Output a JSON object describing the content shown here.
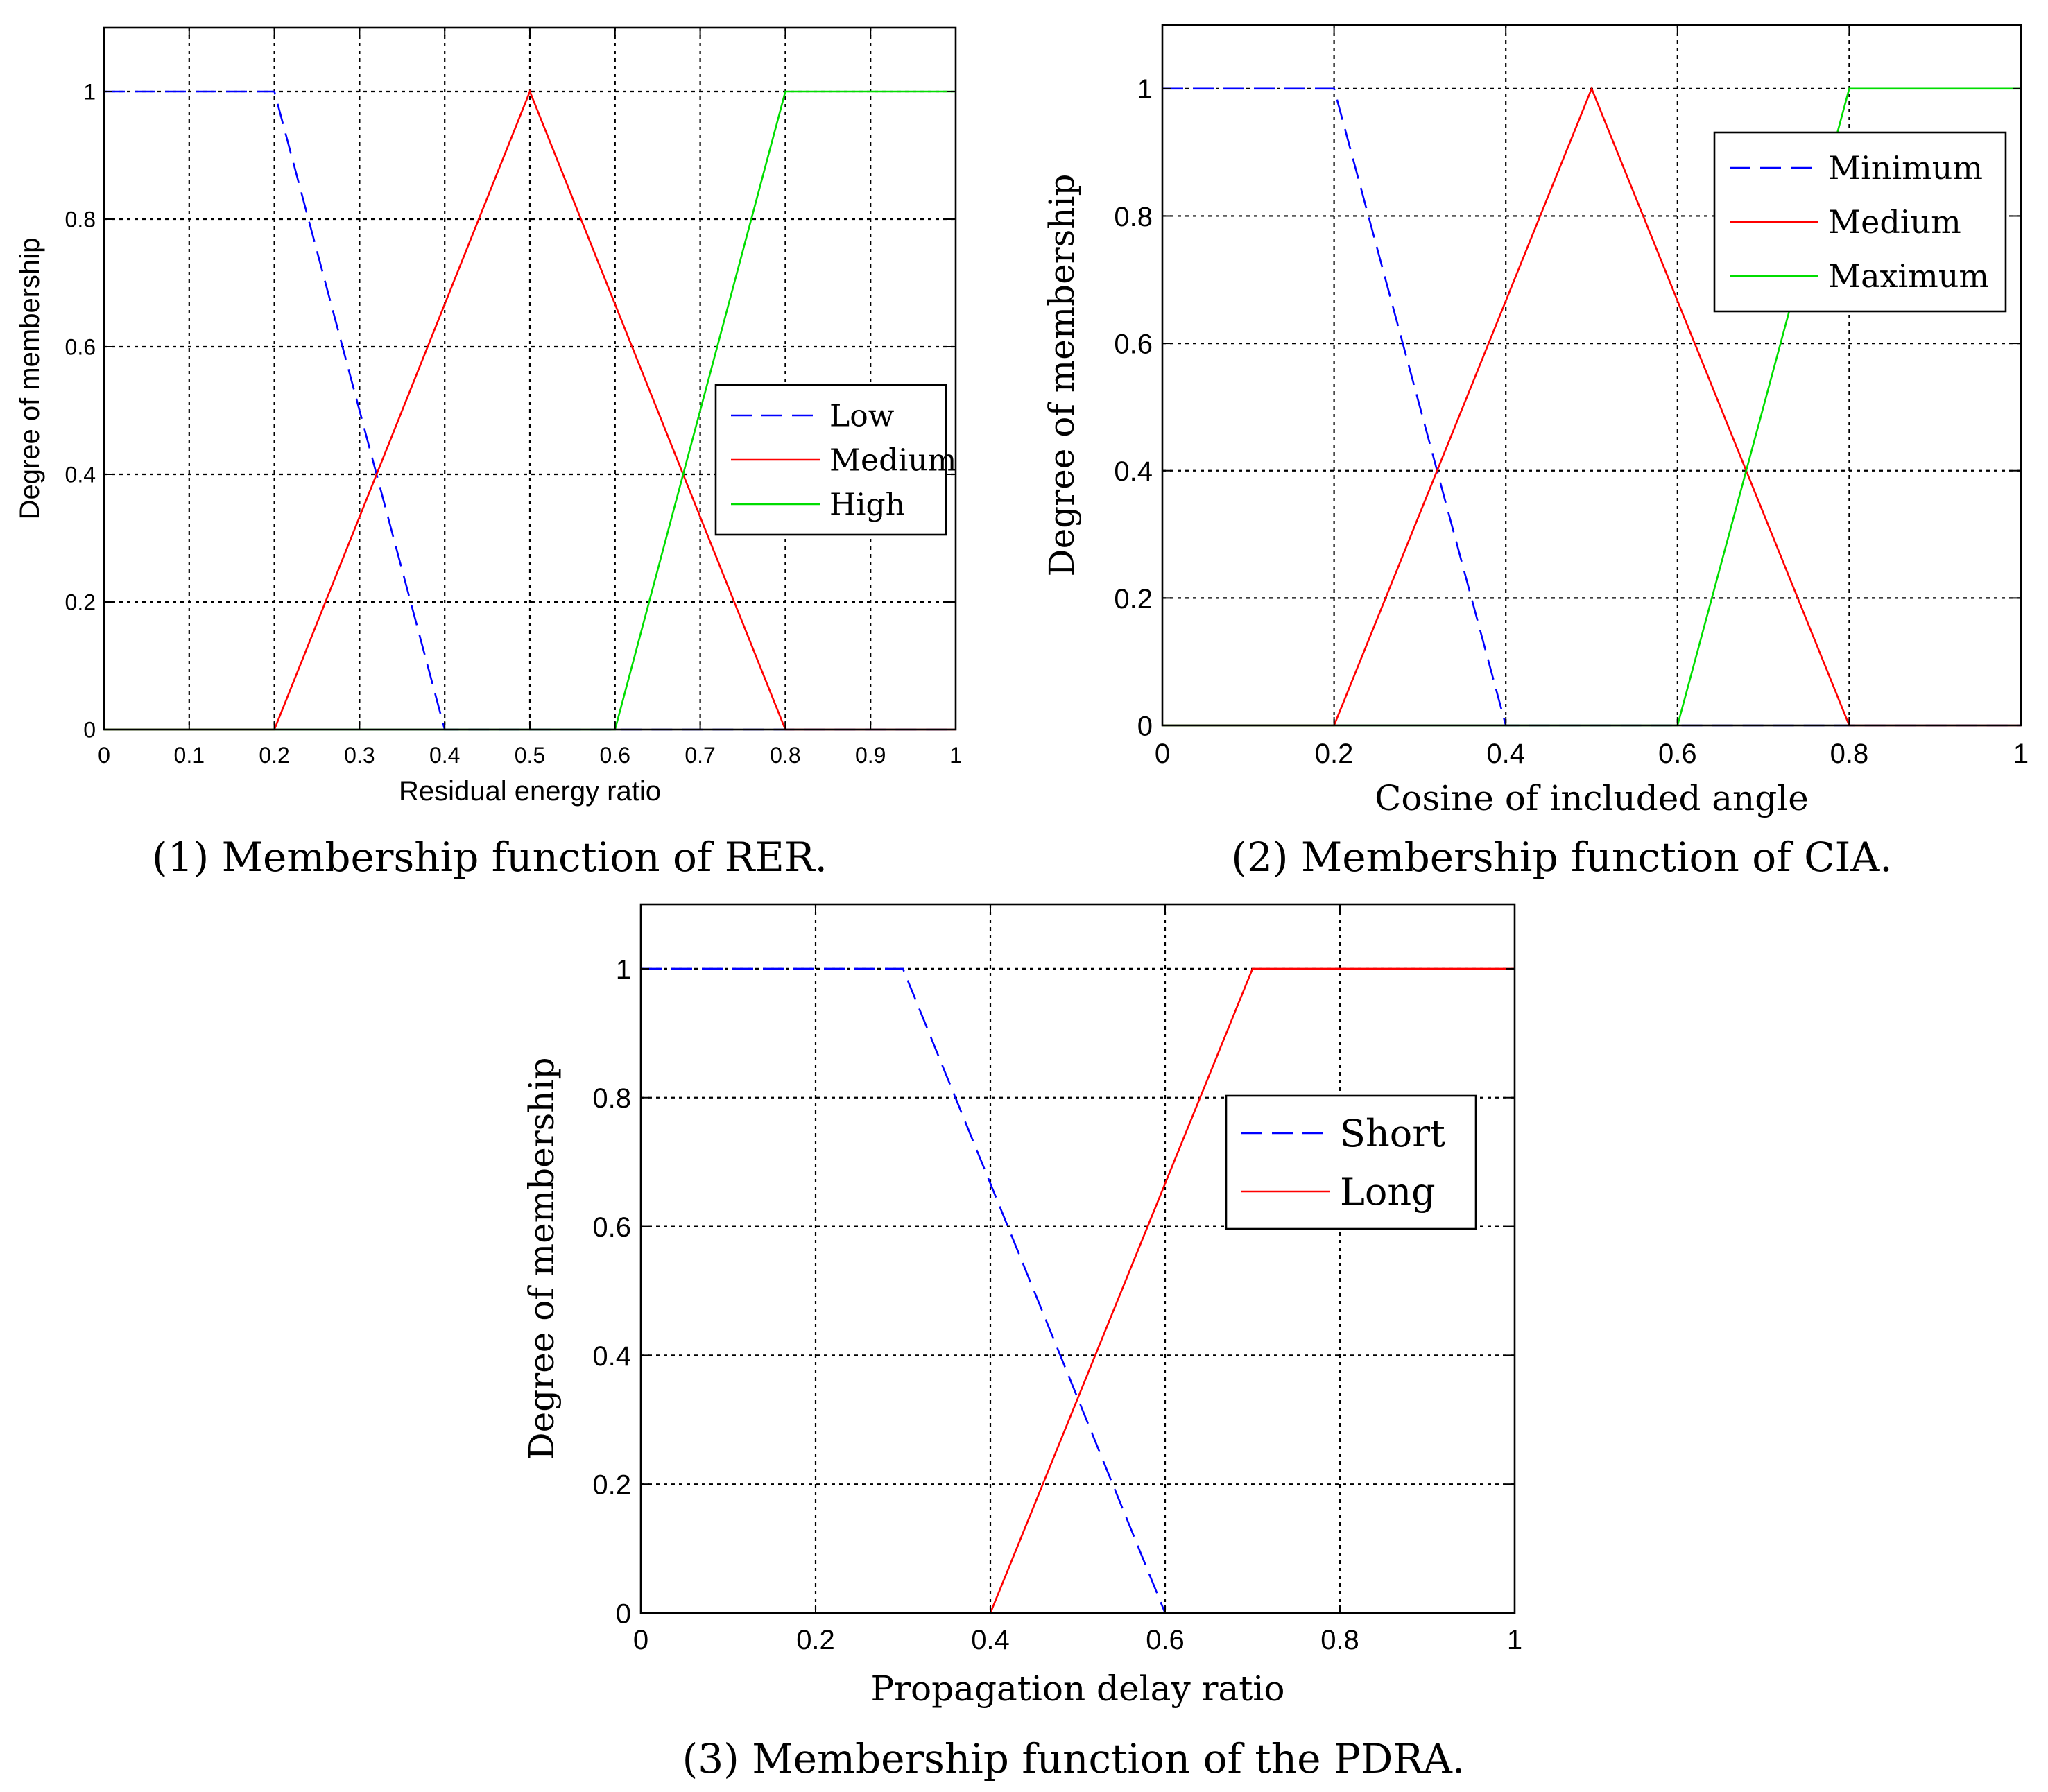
{
  "chart_data": [
    {
      "type": "line",
      "caption": "(1) Membership function of RER.",
      "xlabel": "Residual energy ratio",
      "ylabel": "Degree of membership",
      "xlim": [
        0,
        1
      ],
      "ylim": [
        0,
        1.1
      ],
      "xticks": [
        0,
        0.1,
        0.2,
        0.3,
        0.4,
        0.5,
        0.6,
        0.7,
        0.8,
        0.9,
        1
      ],
      "xtick_labels": [
        "0",
        "0.1",
        "0.2",
        "0.3",
        "0.4",
        "0.5",
        "0.6",
        "0.7",
        "0.8",
        "0.9",
        "1"
      ],
      "yticks": [
        0,
        0.2,
        0.4,
        0.6,
        0.8,
        1
      ],
      "ytick_labels": [
        "0",
        "0.2",
        "0.4",
        "0.6",
        "0.8",
        "1"
      ],
      "grid": true,
      "legend_position": "middle-right",
      "series": [
        {
          "name": "Low",
          "color": "#0000ff",
          "style": "dashed",
          "x": [
            0,
            0.2,
            0.4,
            1
          ],
          "y": [
            1,
            1,
            0,
            0
          ]
        },
        {
          "name": "Medium",
          "color": "#ff0000",
          "style": "solid",
          "x": [
            0,
            0.2,
            0.5,
            0.8,
            1
          ],
          "y": [
            0,
            0,
            1,
            0,
            0
          ]
        },
        {
          "name": "High",
          "color": "#00dd00",
          "style": "solid",
          "x": [
            0,
            0.6,
            0.8,
            1
          ],
          "y": [
            0,
            0,
            1,
            1
          ]
        }
      ]
    },
    {
      "type": "line",
      "caption": "(2) Membership function of CIA.",
      "xlabel": "Cosine of included angle",
      "ylabel": "Degree of membership",
      "xlim": [
        0,
        1
      ],
      "ylim": [
        0,
        1.1
      ],
      "xticks": [
        0,
        0.2,
        0.4,
        0.6,
        0.8,
        1
      ],
      "xtick_labels": [
        "0",
        "0.2",
        "0.4",
        "0.6",
        "0.8",
        "1"
      ],
      "yticks": [
        0,
        0.2,
        0.4,
        0.6,
        0.8,
        1
      ],
      "ytick_labels": [
        "0",
        "0.2",
        "0.4",
        "0.6",
        "0.8",
        "1"
      ],
      "grid": true,
      "legend_position": "top-right",
      "series": [
        {
          "name": "Minimum",
          "color": "#0000ff",
          "style": "dashed",
          "x": [
            0,
            0.2,
            0.4,
            1
          ],
          "y": [
            1,
            1,
            0,
            0
          ]
        },
        {
          "name": "Medium",
          "color": "#ff0000",
          "style": "solid",
          "x": [
            0,
            0.2,
            0.5,
            0.8,
            1
          ],
          "y": [
            0,
            0,
            1,
            0,
            0
          ]
        },
        {
          "name": "Maximum",
          "color": "#00dd00",
          "style": "solid",
          "x": [
            0,
            0.6,
            0.8,
            1
          ],
          "y": [
            0,
            0,
            1,
            1
          ]
        }
      ]
    },
    {
      "type": "line",
      "caption": "(3) Membership function of the PDRA.",
      "xlabel": "Propagation delay ratio",
      "ylabel": "Degree of membership",
      "xlim": [
        0,
        1
      ],
      "ylim": [
        0,
        1.1
      ],
      "xticks": [
        0,
        0.2,
        0.4,
        0.6,
        0.8,
        1
      ],
      "xtick_labels": [
        "0",
        "0.2",
        "0.4",
        "0.6",
        "0.8",
        "1"
      ],
      "yticks": [
        0,
        0.2,
        0.4,
        0.6,
        0.8,
        1
      ],
      "ytick_labels": [
        "0",
        "0.2",
        "0.4",
        "0.6",
        "0.8",
        "1"
      ],
      "grid": true,
      "legend_position": "middle-right",
      "series": [
        {
          "name": "Short",
          "color": "#0000ff",
          "style": "dashed",
          "x": [
            0,
            0.3,
            0.6,
            1
          ],
          "y": [
            1,
            1,
            0,
            0
          ]
        },
        {
          "name": "Long",
          "color": "#ff0000",
          "style": "solid",
          "x": [
            0,
            0.4,
            0.7,
            1
          ],
          "y": [
            0,
            0,
            1,
            1
          ]
        }
      ]
    }
  ]
}
